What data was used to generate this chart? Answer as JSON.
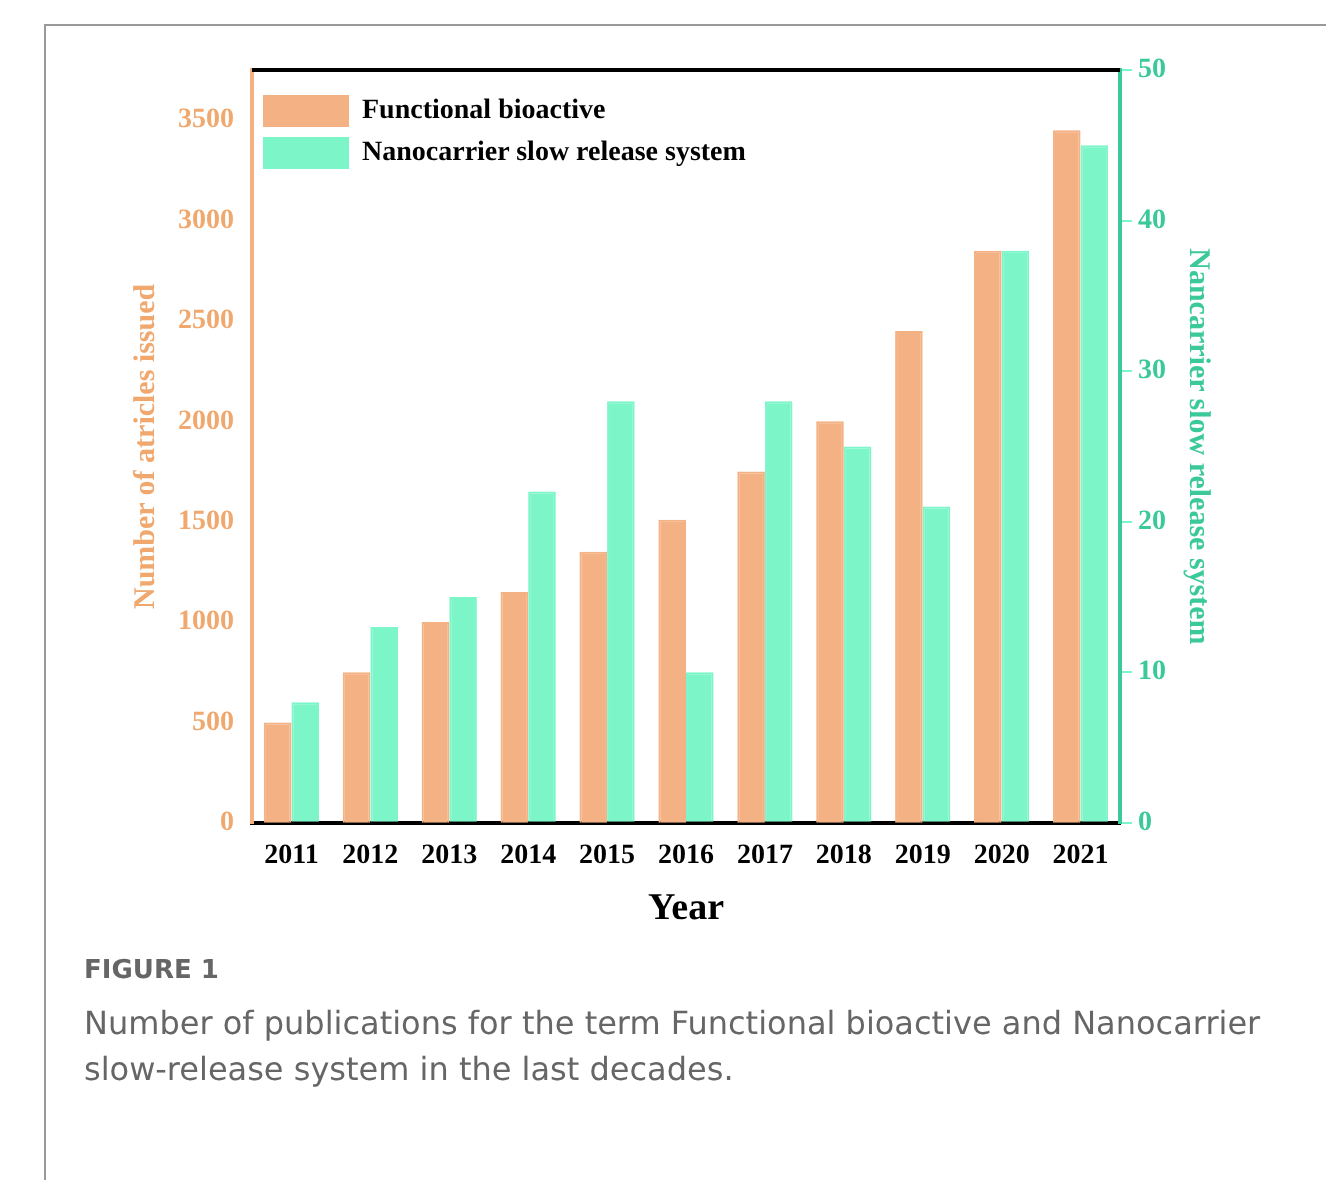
{
  "chart_data": {
    "type": "bar",
    "xlabel": "Year",
    "ylabel": "Number of atricles issued",
    "y2label": "Nancarrier slow release system",
    "categories": [
      "2011",
      "2012",
      "2013",
      "2014",
      "2015",
      "2016",
      "2017",
      "2018",
      "2019",
      "2020",
      "2021"
    ],
    "series": [
      {
        "name": "Functional bioactive",
        "color": "#f4b183",
        "values": [
          500,
          750,
          1000,
          1150,
          1350,
          1510,
          1750,
          2000,
          2450,
          2850,
          3450
        ]
      },
      {
        "name": "Nanocarrier slow release system",
        "color": "#7cf5c9",
        "axis": "y2",
        "values": [
          8,
          13,
          15,
          22,
          28,
          10,
          28,
          25,
          21,
          38,
          45
        ]
      }
    ],
    "ylim": [
      0,
      3750
    ],
    "yticks": [
      0,
      500,
      1000,
      1500,
      2000,
      2500,
      3000,
      3500
    ],
    "y2lim": [
      0,
      50
    ],
    "y2ticks": [
      0,
      10,
      20,
      30,
      40,
      50
    ],
    "legend": "top left",
    "grid": false,
    "annotations": [
      "FIGURE 1",
      "Number of publications for the term Functional bioactive and Nanocarrier slow-release system in the last decades."
    ]
  }
}
